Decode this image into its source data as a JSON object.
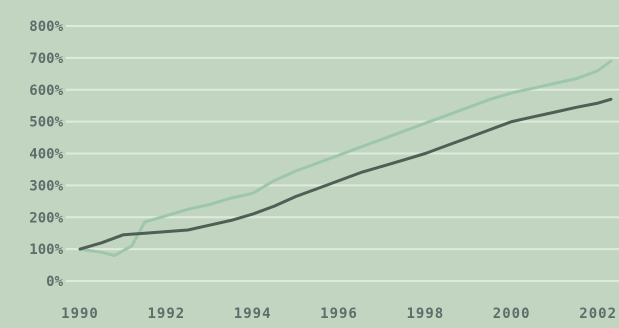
{
  "chart_data": {
    "type": "line",
    "title": "",
    "xlabel": "",
    "ylabel": "",
    "x_ticks": [
      "1990",
      "1992",
      "1994",
      "1996",
      "1998",
      "2000",
      "2002"
    ],
    "y_ticks": [
      "0%",
      "100%",
      "200%",
      "300%",
      "400%",
      "500%",
      "600%",
      "700%",
      "800%"
    ],
    "xlim": [
      1990,
      2002.3
    ],
    "ylim": [
      0,
      800
    ],
    "grid": true,
    "legend": "none",
    "series": [
      {
        "color": "#9ec6ad",
        "points": [
          [
            1990,
            100
          ],
          [
            1990.5,
            90
          ],
          [
            1990.8,
            80
          ],
          [
            1991.2,
            110
          ],
          [
            1991.5,
            185
          ],
          [
            1992,
            205
          ],
          [
            1992.5,
            225
          ],
          [
            1993,
            240
          ],
          [
            1993.5,
            260
          ],
          [
            1994,
            275
          ],
          [
            1994.5,
            315
          ],
          [
            1995,
            345
          ],
          [
            1995.5,
            370
          ],
          [
            1996,
            395
          ],
          [
            1996.5,
            420
          ],
          [
            1997,
            445
          ],
          [
            1997.5,
            470
          ],
          [
            1998,
            495
          ],
          [
            1998.5,
            520
          ],
          [
            1999,
            545
          ],
          [
            1999.5,
            570
          ],
          [
            2000,
            590
          ],
          [
            2000.5,
            605
          ],
          [
            2001,
            620
          ],
          [
            2001.5,
            635
          ],
          [
            2002,
            660
          ],
          [
            2002.3,
            690
          ]
        ]
      },
      {
        "color": "#4f5f55",
        "points": [
          [
            1990,
            100
          ],
          [
            1990.5,
            120
          ],
          [
            1991,
            145
          ],
          [
            1991.5,
            150
          ],
          [
            1992,
            155
          ],
          [
            1992.5,
            160
          ],
          [
            1993,
            175
          ],
          [
            1993.5,
            190
          ],
          [
            1994,
            210
          ],
          [
            1994.5,
            235
          ],
          [
            1995,
            265
          ],
          [
            1995.5,
            290
          ],
          [
            1996,
            315
          ],
          [
            1996.5,
            340
          ],
          [
            1997,
            360
          ],
          [
            1997.5,
            380
          ],
          [
            1998,
            400
          ],
          [
            1998.5,
            425
          ],
          [
            1999,
            450
          ],
          [
            1999.5,
            475
          ],
          [
            2000,
            500
          ],
          [
            2000.5,
            515
          ],
          [
            2001,
            530
          ],
          [
            2001.5,
            545
          ],
          [
            2002,
            558
          ],
          [
            2002.3,
            570
          ]
        ]
      }
    ]
  },
  "colors": {
    "background": "#c2d5c1",
    "gridline": "#dfeade",
    "tick_text": "#5f6d6a"
  }
}
